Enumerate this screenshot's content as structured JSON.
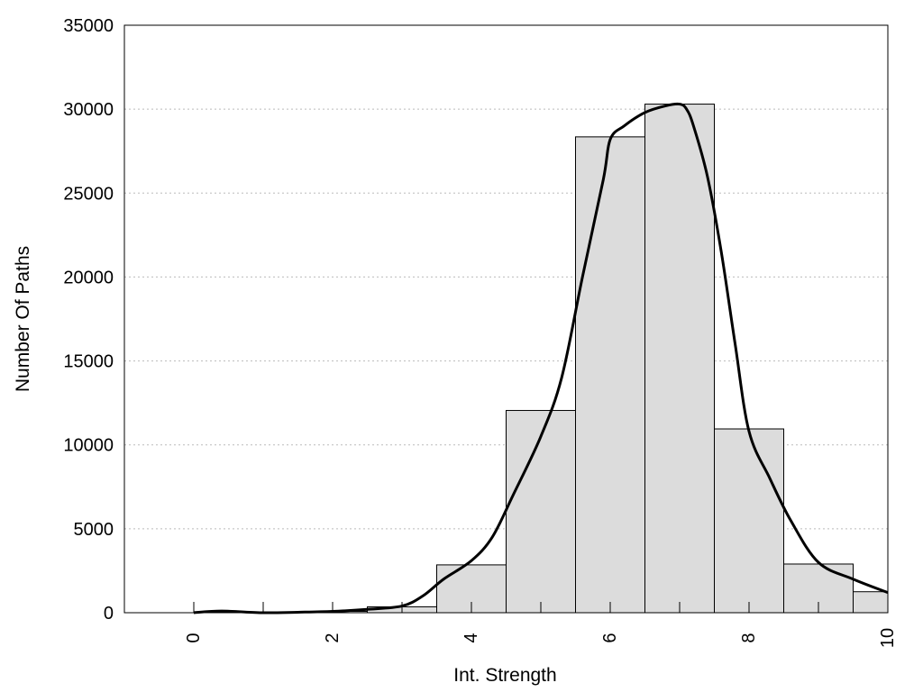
{
  "chart_data": {
    "type": "bar",
    "title": "",
    "xlabel": "Int. Strength",
    "ylabel": "Number Of Paths",
    "xlim": [
      -1,
      10
    ],
    "ylim": [
      0,
      35000
    ],
    "xticks": [
      0,
      2,
      4,
      6,
      8,
      10
    ],
    "yticks": [
      0,
      5000,
      10000,
      15000,
      20000,
      25000,
      30000,
      35000
    ],
    "grid": "horizontal-dotted",
    "legend": "none",
    "bins": [
      {
        "x0": -0.5,
        "x1": 0.5,
        "count": 0
      },
      {
        "x0": 0.5,
        "x1": 1.5,
        "count": 0
      },
      {
        "x0": 1.5,
        "x1": 2.5,
        "count": 80
      },
      {
        "x0": 2.5,
        "x1": 3.5,
        "count": 350
      },
      {
        "x0": 3.5,
        "x1": 4.5,
        "count": 2850
      },
      {
        "x0": 4.5,
        "x1": 5.5,
        "count": 12050
      },
      {
        "x0": 5.5,
        "x1": 6.5,
        "count": 28350
      },
      {
        "x0": 6.5,
        "x1": 7.5,
        "count": 30300
      },
      {
        "x0": 7.5,
        "x1": 8.5,
        "count": 10950
      },
      {
        "x0": 8.5,
        "x1": 9.5,
        "count": 2900
      },
      {
        "x0": 9.5,
        "x1": 10,
        "count": 1250
      }
    ],
    "curve": {
      "x": [
        0,
        0.4,
        1,
        1.5,
        2,
        2.5,
        3,
        3.3,
        3.6,
        4,
        4.3,
        4.6,
        5,
        5.3,
        5.6,
        5.9,
        6,
        6.2,
        6.5,
        6.8,
        7,
        7.1,
        7.2,
        7.4,
        7.6,
        7.8,
        8,
        8.3,
        8.6,
        9,
        9.5,
        10
      ],
      "y": [
        0,
        100,
        0,
        30,
        80,
        200,
        400,
        1000,
        2000,
        3100,
        4500,
        7000,
        10500,
        14000,
        20000,
        25800,
        28200,
        29000,
        29800,
        30200,
        30300,
        30000,
        29000,
        26000,
        21500,
        16000,
        10800,
        8000,
        5500,
        3000,
        2000,
        1200
      ]
    },
    "colors": {
      "bar_fill": "#dcdcdc",
      "bar_stroke": "#000000",
      "curve": "#000000",
      "grid": "#bbbbbb"
    }
  }
}
